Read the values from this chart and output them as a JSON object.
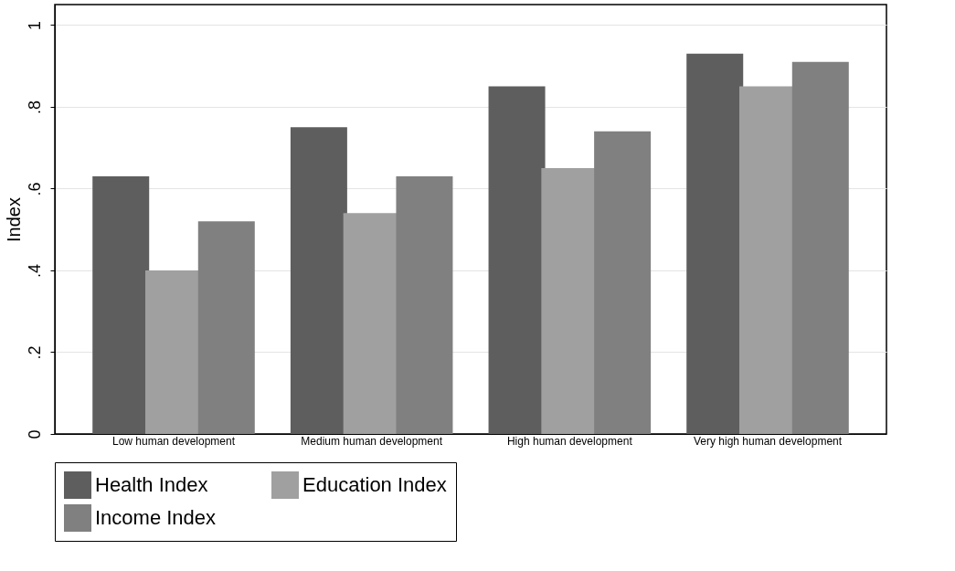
{
  "chart_data": {
    "type": "bar",
    "ylabel": "Index",
    "categories": [
      "Low human development",
      "Medium human development",
      "High human development",
      "Very high human development"
    ],
    "series": [
      {
        "name": "Health Index",
        "color": "#5e5e5e",
        "values": [
          0.63,
          0.75,
          0.85,
          0.93
        ]
      },
      {
        "name": "Education Index",
        "color": "#a0a0a0",
        "values": [
          0.4,
          0.54,
          0.65,
          0.85
        ]
      },
      {
        "name": "Income Index",
        "color": "#808080",
        "values": [
          0.52,
          0.63,
          0.74,
          0.91
        ]
      }
    ],
    "ylim": [
      0,
      1.05
    ],
    "yticks": [
      {
        "value": 0,
        "label": "0"
      },
      {
        "value": 0.2,
        "label": ".2"
      },
      {
        "value": 0.4,
        "label": ".4"
      },
      {
        "value": 0.6,
        "label": ".6"
      },
      {
        "value": 0.8,
        "label": ".8"
      },
      {
        "value": 1,
        "label": "1"
      }
    ],
    "grid": "y",
    "legend": "bottom"
  }
}
